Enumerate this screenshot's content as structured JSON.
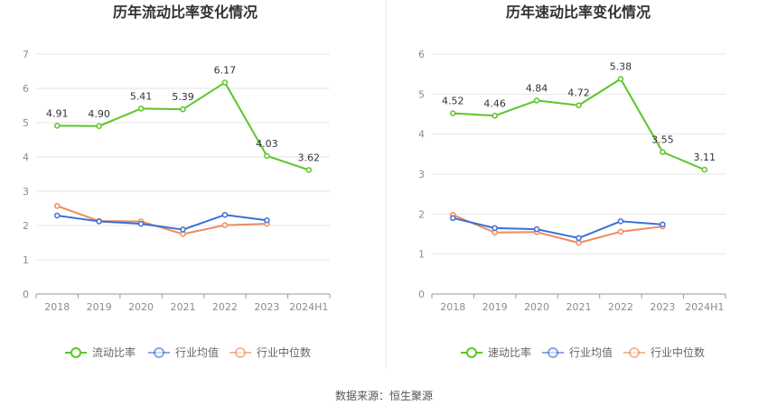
{
  "source": "数据来源：恒生聚源",
  "legend_labels": [
    "行业均值",
    "行业中位数"
  ],
  "colors": {
    "main": "#5cc52a",
    "mean": "#3b6fd8",
    "median": "#f08a5d",
    "grid": "#e6e6e6",
    "axis": "#999999"
  },
  "chart_data": [
    {
      "type": "line",
      "title": "历年流动比率变化情况",
      "categories": [
        "2018",
        "2019",
        "2020",
        "2021",
        "2022",
        "2023",
        "2024H1"
      ],
      "ylim": [
        0,
        7
      ],
      "yticks": [
        0,
        1,
        2,
        3,
        4,
        5,
        6,
        7
      ],
      "grid": true,
      "legend": "bottom",
      "series": [
        {
          "name": "流动比率",
          "values": [
            4.91,
            4.9,
            5.41,
            5.39,
            6.17,
            4.03,
            3.62
          ],
          "labels": [
            "4.91",
            "4.90",
            "5.41",
            "5.39",
            "6.17",
            "4.03",
            "3.62"
          ]
        },
        {
          "name": "行业均值",
          "values": [
            2.29,
            2.12,
            2.05,
            1.88,
            2.31,
            2.15,
            null
          ]
        },
        {
          "name": "行业中位数",
          "values": [
            2.57,
            2.13,
            2.12,
            1.75,
            2.01,
            2.05,
            null
          ]
        }
      ]
    },
    {
      "type": "line",
      "title": "历年速动比率变化情况",
      "categories": [
        "2018",
        "2019",
        "2020",
        "2021",
        "2022",
        "2023",
        "2024H1"
      ],
      "ylim": [
        0,
        6
      ],
      "yticks": [
        0,
        1,
        2,
        3,
        4,
        5,
        6
      ],
      "grid": true,
      "legend": "bottom",
      "series": [
        {
          "name": "速动比率",
          "values": [
            4.52,
            4.46,
            4.84,
            4.72,
            5.38,
            3.55,
            3.11
          ],
          "labels": [
            "4.52",
            "4.46",
            "4.84",
            "4.72",
            "5.38",
            "3.55",
            "3.11"
          ]
        },
        {
          "name": "行业均值",
          "values": [
            1.9,
            1.65,
            1.62,
            1.4,
            1.82,
            1.74,
            null
          ]
        },
        {
          "name": "行业中位数",
          "values": [
            1.98,
            1.54,
            1.55,
            1.28,
            1.56,
            1.69,
            null
          ]
        }
      ]
    }
  ]
}
